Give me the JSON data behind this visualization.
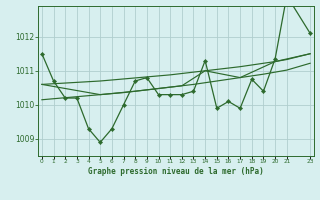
{
  "x_main": [
    0,
    1,
    2,
    3,
    4,
    5,
    6,
    7,
    8,
    9,
    10,
    11,
    12,
    13,
    14,
    15,
    16,
    17,
    18,
    19,
    20,
    21,
    23
  ],
  "y_main": [
    1011.5,
    1010.7,
    1010.2,
    1010.2,
    1009.3,
    1008.9,
    1009.3,
    1010.0,
    1010.7,
    1010.8,
    1010.3,
    1010.3,
    1010.3,
    1010.4,
    1011.3,
    1009.9,
    1010.1,
    1009.9,
    1010.75,
    1010.4,
    1011.35,
    1013.2,
    1012.1
  ],
  "x_upper": [
    0,
    1,
    2,
    3,
    4,
    5,
    6,
    7,
    8,
    9,
    10,
    11,
    12,
    13,
    14,
    15,
    16,
    17,
    18,
    19,
    20,
    21,
    23
  ],
  "y_upper": [
    1010.6,
    1010.62,
    1010.64,
    1010.66,
    1010.68,
    1010.7,
    1010.73,
    1010.76,
    1010.79,
    1010.82,
    1010.85,
    1010.88,
    1010.92,
    1010.96,
    1011.0,
    1011.04,
    1011.08,
    1011.12,
    1011.17,
    1011.22,
    1011.27,
    1011.33,
    1011.5
  ],
  "x_lower": [
    0,
    1,
    2,
    3,
    4,
    5,
    6,
    7,
    8,
    9,
    10,
    11,
    12,
    13,
    14,
    15,
    16,
    17,
    18,
    19,
    20,
    21,
    23
  ],
  "y_lower": [
    1010.15,
    1010.18,
    1010.21,
    1010.24,
    1010.27,
    1010.3,
    1010.33,
    1010.36,
    1010.4,
    1010.44,
    1010.48,
    1010.52,
    1010.56,
    1010.6,
    1010.65,
    1010.7,
    1010.75,
    1010.8,
    1010.85,
    1010.9,
    1010.96,
    1011.02,
    1011.22
  ],
  "x_connect": [
    0,
    5,
    8,
    10,
    12,
    14,
    17,
    20,
    23
  ],
  "y_connect": [
    1010.6,
    1010.3,
    1010.4,
    1010.48,
    1010.56,
    1011.0,
    1010.8,
    1011.27,
    1011.5
  ],
  "line_color": "#2d6a2d",
  "bg_color": "#d7efef",
  "grid_color": "#b0cece",
  "title": "Graphe pression niveau de la mer (hPa)",
  "yticks": [
    1009,
    1010,
    1011,
    1012
  ],
  "ylim": [
    1008.5,
    1012.9
  ],
  "xlim": [
    -0.3,
    23.3
  ],
  "xticks": [
    0,
    1,
    2,
    3,
    4,
    5,
    6,
    7,
    8,
    9,
    10,
    11,
    12,
    13,
    14,
    15,
    16,
    17,
    18,
    19,
    20,
    21,
    23
  ]
}
